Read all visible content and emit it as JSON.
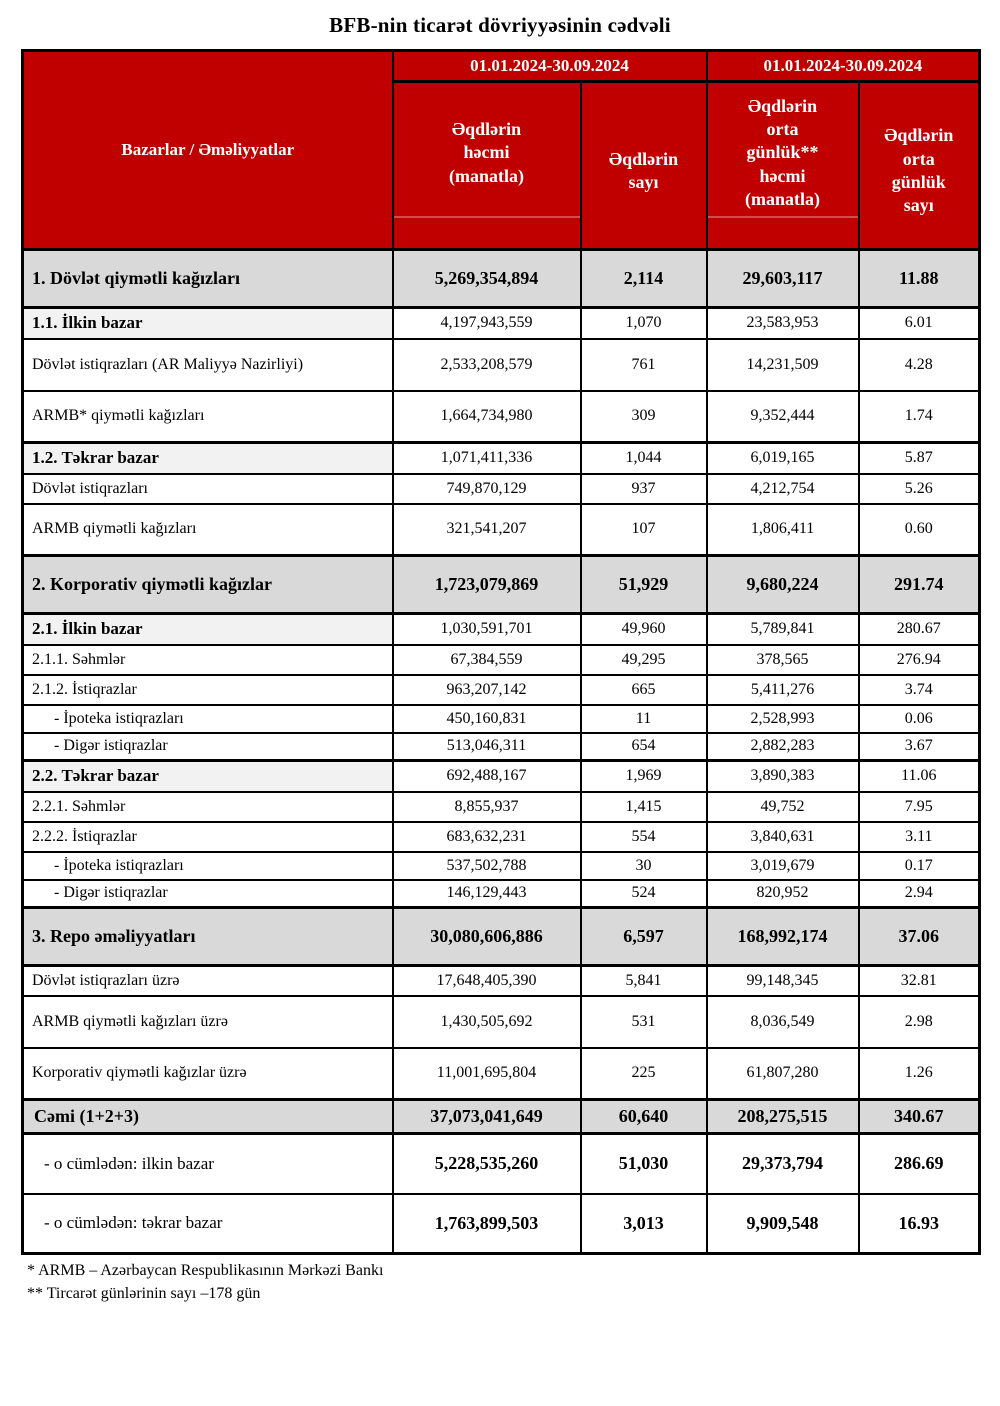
{
  "title": "BFB-nin ticarət dövriyyəsinin cədvəli",
  "colors": {
    "header_bg": "#C00000",
    "header_text": "#FFFFFF",
    "section_row_bg": "#D9D9D9",
    "subsection_label_bg": "#F2F2F2",
    "border": "#000000"
  },
  "table": {
    "corner_label": "Bazarlar / Əməliyyatlar",
    "period_left": "01.01.2024-30.09.2024",
    "period_right": "01.01.2024-30.09.2024",
    "columns": [
      "Əqdlərin\nhəcmi\n(manatla)",
      "Əqdlərin\nsayı",
      "Əqdlərin\norta\ngünlük**\nhəcmi\n(manatla)",
      "Əqdlərin\norta\ngünlük\nsayı"
    ],
    "rows": [
      {
        "label": "1. Dövlət qiymətli kağızları",
        "values": [
          "5,269,354,894",
          "2,114",
          "29,603,117",
          "11.88"
        ],
        "style": "section"
      },
      {
        "label": "1.1. İlkin bazar",
        "values": [
          "4,197,943,559",
          "1,070",
          "23,583,953",
          "6.01"
        ],
        "style": "subsection"
      },
      {
        "label": "Dövlət istiqrazları (AR Maliyyə Nazirliyi)",
        "values": [
          "2,533,208,579",
          "761",
          "14,231,509",
          "4.28"
        ],
        "style": "detail-tall"
      },
      {
        "label": "ARMB* qiymətli kağızları",
        "values": [
          "1,664,734,980",
          "309",
          "9,352,444",
          "1.74"
        ],
        "style": "detail-tall"
      },
      {
        "label": "1.2. Təkrar bazar",
        "values": [
          "1,071,411,336",
          "1,044",
          "6,019,165",
          "5.87"
        ],
        "style": "subsection"
      },
      {
        "label": "Dövlət istiqrazları",
        "values": [
          "749,870,129",
          "937",
          "4,212,754",
          "5.26"
        ],
        "style": "detail"
      },
      {
        "label": "ARMB qiymətli kağızları",
        "values": [
          "321,541,207",
          "107",
          "1,806,411",
          "0.60"
        ],
        "style": "detail-tall"
      },
      {
        "label": "2. Korporativ qiymətli kağızlar",
        "values": [
          "1,723,079,869",
          "51,929",
          "9,680,224",
          "291.74"
        ],
        "style": "section"
      },
      {
        "label": "2.1. İlkin bazar",
        "values": [
          "1,030,591,701",
          "49,960",
          "5,789,841",
          "280.67"
        ],
        "style": "subsection"
      },
      {
        "label": "2.1.1. Səhmlər",
        "values": [
          "67,384,559",
          "49,295",
          "378,565",
          "276.94"
        ],
        "style": "detail"
      },
      {
        "label": "2.1.2. İstiqrazlar",
        "values": [
          "963,207,142",
          "665",
          "5,411,276",
          "3.74"
        ],
        "style": "detail"
      },
      {
        "label": "- İpoteka istiqrazları",
        "values": [
          "450,160,831",
          "11",
          "2,528,993",
          "0.06"
        ],
        "style": "indent"
      },
      {
        "label": "- Digər istiqrazlar",
        "values": [
          "513,046,311",
          "654",
          "2,882,283",
          "3.67"
        ],
        "style": "indent"
      },
      {
        "label": "2.2. Təkrar bazar",
        "values": [
          "692,488,167",
          "1,969",
          "3,890,383",
          "11.06"
        ],
        "style": "subsection"
      },
      {
        "label": "2.2.1. Səhmlər",
        "values": [
          "8,855,937",
          "1,415",
          "49,752",
          "7.95"
        ],
        "style": "detail"
      },
      {
        "label": "2.2.2. İstiqrazlar",
        "values": [
          "683,632,231",
          "554",
          "3,840,631",
          "3.11"
        ],
        "style": "detail"
      },
      {
        "label": "- İpoteka istiqrazları",
        "values": [
          "537,502,788",
          "30",
          "3,019,679",
          "0.17"
        ],
        "style": "indent"
      },
      {
        "label": "- Digər istiqrazlar",
        "values": [
          "146,129,443",
          "524",
          "820,952",
          "2.94"
        ],
        "style": "indent"
      },
      {
        "label": "3. Repo əməliyyatları",
        "values": [
          "30,080,606,886",
          "6,597",
          "168,992,174",
          "37.06"
        ],
        "style": "section"
      },
      {
        "label": "Dövlət istiqrazları üzrə",
        "values": [
          "17,648,405,390",
          "5,841",
          "99,148,345",
          "32.81"
        ],
        "style": "detail"
      },
      {
        "label": "ARMB qiymətli kağızları üzrə",
        "values": [
          "1,430,505,692",
          "531",
          "8,036,549",
          "2.98"
        ],
        "style": "detail-tall"
      },
      {
        "label": "Korporativ qiymətli kağızlar üzrə",
        "values": [
          "11,001,695,804",
          "225",
          "61,807,280",
          "1.26"
        ],
        "style": "detail-tall"
      },
      {
        "label": "Cəmi (1+2+3)",
        "values": [
          "37,073,041,649",
          "60,640",
          "208,275,515",
          "340.67"
        ],
        "style": "total"
      },
      {
        "label": "- o cümlədən: ilkin bazar",
        "values": [
          "5,228,535,260",
          "51,030",
          "29,373,794",
          "286.69"
        ],
        "style": "total-detail"
      },
      {
        "label": "- o cümlədən: təkrar bazar",
        "values": [
          "1,763,899,503",
          "3,013",
          "9,909,548",
          "16.93"
        ],
        "style": "total-detail"
      }
    ]
  },
  "footnotes": [
    "* ARMB – Azərbaycan Respublikasının Mərkəzi Bankı",
    "** Tircarət günlərinin sayı –178 gün"
  ]
}
